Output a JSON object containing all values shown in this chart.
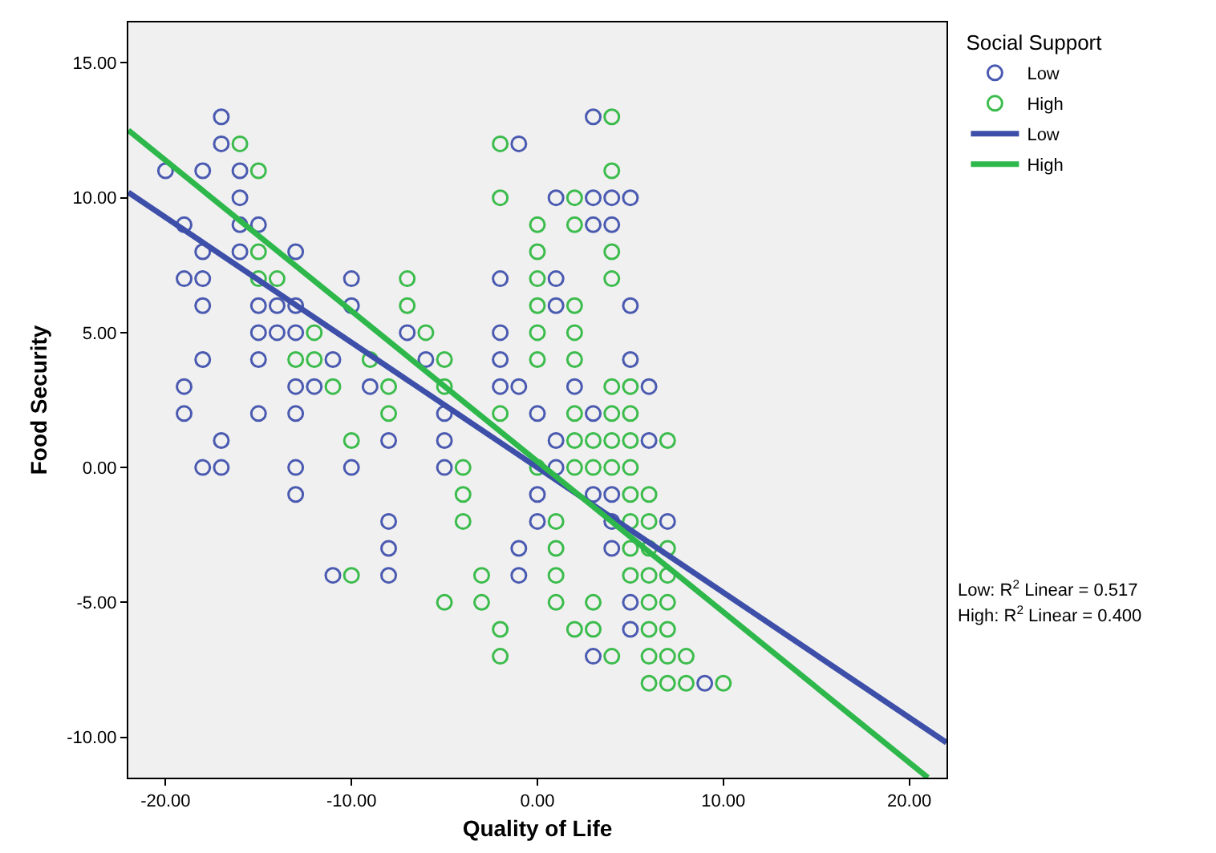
{
  "chart_data": {
    "type": "scatter",
    "xlabel": "Quality of Life",
    "ylabel": "Food Security",
    "legend_title": "Social Support",
    "legend": "right",
    "grid": false,
    "xlim": [
      -22,
      22
    ],
    "ylim": [
      -11.5,
      16.5
    ],
    "xticks": [
      {
        "value": -20,
        "label": "-20.00"
      },
      {
        "value": -10,
        "label": "-10.00"
      },
      {
        "value": 0,
        "label": "0.00"
      },
      {
        "value": 10,
        "label": "10.00"
      },
      {
        "value": 20,
        "label": "20.00"
      }
    ],
    "yticks": [
      {
        "value": -10,
        "label": "-10.00"
      },
      {
        "value": -5,
        "label": "-5.00"
      },
      {
        "value": 0,
        "label": "0.00"
      },
      {
        "value": 5,
        "label": "5.00"
      },
      {
        "value": 10,
        "label": "10.00"
      },
      {
        "value": 15,
        "label": "15.00"
      }
    ],
    "annotations": [
      "Low: R$^{2}$ Linear = 0.517",
      "High: R$^{2}$ Linear = 0.400"
    ],
    "series": [
      {
        "name": "Low",
        "marker": "circle",
        "color": "#4a5ab0",
        "x": [
          -17,
          3,
          -17,
          -1,
          -20,
          -18,
          -16,
          -16,
          1,
          3,
          4,
          5,
          -19,
          -16,
          -15,
          3,
          4,
          -18,
          -16,
          -13,
          -19,
          -18,
          -10,
          -2,
          1,
          -18,
          -15,
          -14,
          -13,
          -10,
          1,
          5,
          -15,
          -14,
          -13,
          -7,
          -2,
          -18,
          -15,
          -11,
          -6,
          -2,
          5,
          -19,
          -13,
          -12,
          -9,
          -2,
          -1,
          2,
          6,
          -19,
          -15,
          -13,
          -5,
          0,
          3,
          -17,
          -8,
          -5,
          1,
          6,
          -18,
          -17,
          -13,
          -10,
          -5,
          1,
          -13,
          0,
          3,
          4,
          -8,
          0,
          4,
          7,
          -8,
          -1,
          4,
          -11,
          -8,
          -1,
          5,
          5,
          3,
          9
        ],
        "values": [
          13,
          13,
          12,
          12,
          11,
          11,
          11,
          10,
          10,
          10,
          10,
          10,
          9,
          9,
          9,
          9,
          9,
          8,
          8,
          8,
          7,
          7,
          7,
          7,
          7,
          6,
          6,
          6,
          6,
          6,
          6,
          6,
          5,
          5,
          5,
          5,
          5,
          4,
          4,
          4,
          4,
          4,
          4,
          3,
          3,
          3,
          3,
          3,
          3,
          3,
          3,
          2,
          2,
          2,
          2,
          2,
          2,
          1,
          1,
          1,
          1,
          1,
          0,
          0,
          0,
          0,
          0,
          0,
          -1,
          -1,
          -1,
          -1,
          -2,
          -2,
          -2,
          -2,
          -3,
          -3,
          -3,
          -4,
          -4,
          -4,
          -5,
          -6,
          -7,
          -8
        ]
      },
      {
        "name": "High",
        "marker": "circle",
        "color": "#3cbc4c",
        "x": [
          4,
          -16,
          -2,
          -15,
          4,
          -2,
          2,
          0,
          2,
          -15,
          0,
          4,
          -15,
          -14,
          -7,
          0,
          4,
          -7,
          0,
          2,
          -12,
          -6,
          0,
          2,
          -13,
          -12,
          -9,
          -5,
          0,
          2,
          -11,
          -8,
          -5,
          4,
          5,
          -8,
          -2,
          2,
          4,
          5,
          -10,
          2,
          3,
          4,
          5,
          7,
          -4,
          0,
          2,
          3,
          4,
          5,
          -4,
          5,
          6,
          -4,
          1,
          5,
          6,
          1,
          5,
          6,
          7,
          -10,
          -3,
          1,
          5,
          6,
          7,
          -5,
          -3,
          1,
          3,
          6,
          7,
          -2,
          2,
          3,
          6,
          7,
          -2,
          4,
          6,
          7,
          8,
          6,
          7,
          8,
          10
        ],
        "values": [
          13,
          12,
          12,
          11,
          11,
          10,
          10,
          9,
          9,
          8,
          8,
          8,
          7,
          7,
          7,
          7,
          7,
          6,
          6,
          6,
          5,
          5,
          5,
          5,
          4,
          4,
          4,
          4,
          4,
          4,
          3,
          3,
          3,
          3,
          3,
          2,
          2,
          2,
          2,
          2,
          1,
          1,
          1,
          1,
          1,
          1,
          0,
          0,
          0,
          0,
          0,
          0,
          -1,
          -1,
          -1,
          -2,
          -2,
          -2,
          -2,
          -3,
          -3,
          -3,
          -3,
          -4,
          -4,
          -4,
          -4,
          -4,
          -4,
          -5,
          -5,
          -5,
          -5,
          -5,
          -5,
          -6,
          -6,
          -6,
          -6,
          -6,
          -7,
          -7,
          -7,
          -7,
          -7,
          -8,
          -8,
          -8,
          -8
        ]
      },
      {
        "name": "Low",
        "type": "line",
        "marker": "none",
        "color": "#3d4fa8",
        "x": [
          -22,
          22
        ],
        "values": [
          10.2,
          -10.2
        ]
      },
      {
        "name": "High",
        "type": "line",
        "marker": "none",
        "color": "#2eb84b",
        "x": [
          -22,
          21
        ],
        "values": [
          12.5,
          -11.5
        ]
      }
    ]
  }
}
